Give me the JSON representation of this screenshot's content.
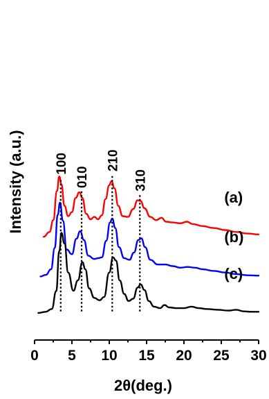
{
  "chart_data": {
    "type": "line",
    "xlabel": "2θ(deg.)",
    "ylabel": "Intensity (a.u.)",
    "xlim": [
      0,
      30
    ],
    "x_ticks": [
      0,
      5,
      10,
      15,
      20,
      25,
      30
    ],
    "series": [
      {
        "name": "(a)",
        "color": "#ff0000",
        "baseline": 0.96,
        "scale": 0.5,
        "points": [
          [
            1.2,
            0.0
          ],
          [
            2.0,
            0.12
          ],
          [
            2.5,
            0.42
          ],
          [
            3.0,
            1.15
          ],
          [
            3.3,
            1.52
          ],
          [
            3.6,
            1.32
          ],
          [
            4.0,
            0.78
          ],
          [
            4.5,
            0.52
          ],
          [
            5.0,
            0.62
          ],
          [
            5.5,
            0.98
          ],
          [
            6.0,
            1.12
          ],
          [
            6.4,
            0.98
          ],
          [
            6.9,
            0.58
          ],
          [
            7.5,
            0.44
          ],
          [
            8.0,
            0.5
          ],
          [
            8.5,
            0.44
          ],
          [
            9.0,
            0.54
          ],
          [
            9.5,
            0.95
          ],
          [
            10.0,
            1.3
          ],
          [
            10.3,
            1.4
          ],
          [
            10.7,
            1.22
          ],
          [
            11.2,
            0.78
          ],
          [
            11.8,
            0.52
          ],
          [
            12.5,
            0.5
          ],
          [
            13.2,
            0.7
          ],
          [
            13.8,
            0.92
          ],
          [
            14.2,
            0.9
          ],
          [
            14.7,
            0.72
          ],
          [
            15.5,
            0.5
          ],
          [
            16.3,
            0.42
          ],
          [
            17.0,
            0.48
          ],
          [
            17.6,
            0.38
          ],
          [
            18.5,
            0.36
          ],
          [
            19.5,
            0.34
          ],
          [
            20.4,
            0.38
          ],
          [
            21.2,
            0.32
          ],
          [
            22.5,
            0.27
          ],
          [
            24.0,
            0.22
          ],
          [
            25.5,
            0.17
          ],
          [
            27.0,
            0.12
          ],
          [
            28.5,
            0.08
          ],
          [
            30.0,
            0.06
          ]
        ]
      },
      {
        "name": "(b)",
        "color": "#0000ff",
        "baseline": 0.46,
        "scale": 0.5,
        "points": [
          [
            0.8,
            0.0
          ],
          [
            1.5,
            0.04
          ],
          [
            2.2,
            0.18
          ],
          [
            2.7,
            0.72
          ],
          [
            3.1,
            1.55
          ],
          [
            3.4,
            1.86
          ],
          [
            3.8,
            1.4
          ],
          [
            4.3,
            0.68
          ],
          [
            5.0,
            0.56
          ],
          [
            5.6,
            0.95
          ],
          [
            6.1,
            1.14
          ],
          [
            6.6,
            0.92
          ],
          [
            7.2,
            0.52
          ],
          [
            8.0,
            0.44
          ],
          [
            8.5,
            0.46
          ],
          [
            9.0,
            0.48
          ],
          [
            9.6,
            0.9
          ],
          [
            10.1,
            1.36
          ],
          [
            10.4,
            1.46
          ],
          [
            10.8,
            1.22
          ],
          [
            11.3,
            0.74
          ],
          [
            12.0,
            0.46
          ],
          [
            12.7,
            0.42
          ],
          [
            13.3,
            0.6
          ],
          [
            13.9,
            0.92
          ],
          [
            14.3,
            0.96
          ],
          [
            14.8,
            0.74
          ],
          [
            15.5,
            0.42
          ],
          [
            16.5,
            0.3
          ],
          [
            17.5,
            0.3
          ],
          [
            18.5,
            0.26
          ],
          [
            19.5,
            0.22
          ],
          [
            20.5,
            0.24
          ],
          [
            21.5,
            0.22
          ],
          [
            22.5,
            0.18
          ],
          [
            24.0,
            0.14
          ],
          [
            25.5,
            0.1
          ],
          [
            27.0,
            0.06
          ],
          [
            28.5,
            0.03
          ],
          [
            30.0,
            0.02
          ]
        ]
      },
      {
        "name": "(c)",
        "color": "#000000",
        "baseline": 0.0,
        "scale": 0.5,
        "points": [
          [
            0.5,
            0.0
          ],
          [
            1.5,
            0.03
          ],
          [
            2.3,
            0.1
          ],
          [
            2.9,
            0.55
          ],
          [
            3.3,
            1.55
          ],
          [
            3.6,
            2.02
          ],
          [
            4.0,
            1.75
          ],
          [
            4.5,
            1.02
          ],
          [
            5.2,
            0.56
          ],
          [
            5.8,
            0.82
          ],
          [
            6.4,
            1.28
          ],
          [
            6.8,
            1.1
          ],
          [
            7.3,
            0.62
          ],
          [
            8.0,
            0.38
          ],
          [
            8.7,
            0.32
          ],
          [
            9.3,
            0.4
          ],
          [
            10.0,
            1.02
          ],
          [
            10.5,
            1.4
          ],
          [
            10.9,
            1.32
          ],
          [
            11.4,
            0.82
          ],
          [
            12.0,
            0.48
          ],
          [
            12.6,
            0.3
          ],
          [
            13.2,
            0.36
          ],
          [
            13.8,
            0.64
          ],
          [
            14.2,
            0.72
          ],
          [
            14.7,
            0.58
          ],
          [
            15.3,
            0.3
          ],
          [
            16.0,
            0.16
          ],
          [
            16.8,
            0.12
          ],
          [
            17.4,
            0.2
          ],
          [
            18.0,
            0.14
          ],
          [
            19.0,
            0.12
          ],
          [
            20.0,
            0.12
          ],
          [
            21.0,
            0.16
          ],
          [
            22.0,
            0.12
          ],
          [
            23.0,
            0.1
          ],
          [
            24.5,
            0.08
          ],
          [
            26.0,
            0.06
          ],
          [
            27.0,
            0.08
          ],
          [
            28.0,
            0.04
          ],
          [
            29.0,
            0.03
          ],
          [
            30.0,
            0.03
          ]
        ]
      }
    ],
    "annotations": [
      {
        "label": "100",
        "x": 3.5
      },
      {
        "label": "010",
        "x": 6.3
      },
      {
        "label": "210",
        "x": 10.4
      },
      {
        "label": "310",
        "x": 14.1
      }
    ]
  }
}
